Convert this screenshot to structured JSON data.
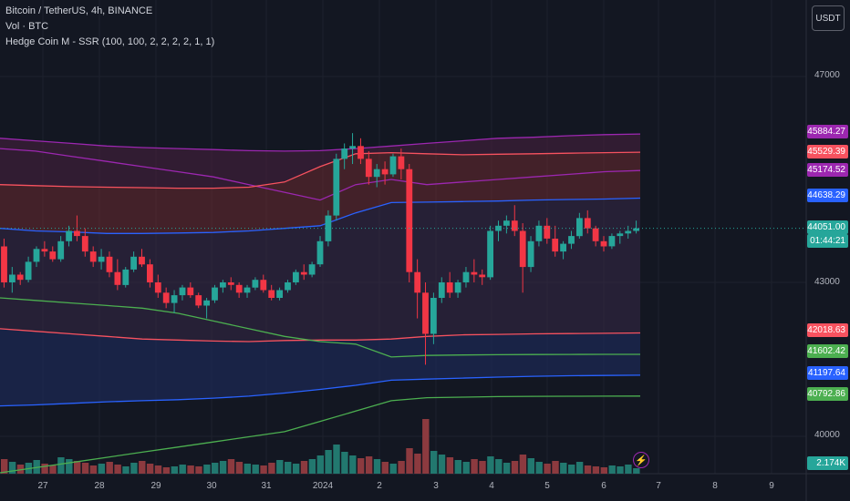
{
  "legend": {
    "main": "Bitcoin / TetherUS, 4h, BINANCE",
    "vol": "Vol · BTC",
    "indicator": "Hedge Coin M - SSR (100, 100, 2, 2, 2, 2, 1, 1)"
  },
  "currency_button": "USDT",
  "colors": {
    "up": "#26a69a",
    "down": "#f23645",
    "purple": "#9c27b0",
    "orange": "#f7525f",
    "blue": "#2962ff",
    "green": "#4caf50",
    "volume_up": "#22786f",
    "volume_down": "#8c3a3f"
  },
  "chart_data": {
    "type": "candlestick",
    "title": "Bitcoin / TetherUS, 4h, BINANCE",
    "x_axis": {
      "labels": [
        "27",
        "28",
        "29",
        "30",
        "31",
        "2024",
        "2",
        "3",
        "4",
        "5",
        "6",
        "7",
        "8",
        "9"
      ]
    },
    "y_axis": {
      "ticks": [
        47000,
        43000,
        40000
      ],
      "range": [
        39500,
        47500
      ]
    },
    "price_tags": [
      {
        "label": "45884.27",
        "color": "#9c27b0"
      },
      {
        "label": "45529.39",
        "color": "#f7525f"
      },
      {
        "label": "45174.52",
        "color": "#9c27b0"
      },
      {
        "label": "44638.29",
        "color": "#2962ff"
      },
      {
        "label": "44051.00",
        "color": "#26a69a"
      },
      {
        "label": "01:44:21",
        "color": "#26a69a"
      },
      {
        "label": "42018.63",
        "color": "#f7525f"
      },
      {
        "label": "41602.42",
        "color": "#4caf50"
      },
      {
        "label": "41197.64",
        "color": "#2962ff"
      },
      {
        "label": "40792.86",
        "color": "#4caf50"
      },
      {
        "label": "2.174K",
        "color": "#26a69a"
      }
    ],
    "candles": [
      [
        43700,
        43850,
        42900,
        43000
      ],
      [
        43000,
        43300,
        42800,
        43150
      ],
      [
        43150,
        43200,
        42950,
        43050
      ],
      [
        43050,
        43500,
        43000,
        43400
      ],
      [
        43400,
        43700,
        43300,
        43650
      ],
      [
        43650,
        43800,
        43500,
        43600
      ],
      [
        43600,
        43700,
        43400,
        43450
      ],
      [
        43450,
        43900,
        43400,
        43800
      ],
      [
        43800,
        44100,
        43700,
        44000
      ],
      [
        44000,
        44300,
        43800,
        43900
      ],
      [
        43900,
        44050,
        43500,
        43600
      ],
      [
        43600,
        43700,
        43300,
        43400
      ],
      [
        43400,
        43650,
        43250,
        43500
      ],
      [
        43500,
        43600,
        43100,
        43200
      ],
      [
        43200,
        43450,
        42850,
        42950
      ],
      [
        42950,
        43300,
        42900,
        43250
      ],
      [
        43250,
        43600,
        43200,
        43500
      ],
      [
        43500,
        43650,
        43300,
        43350
      ],
      [
        43350,
        43450,
        42900,
        43000
      ],
      [
        43000,
        43150,
        42700,
        42800
      ],
      [
        42800,
        42900,
        42500,
        42600
      ],
      [
        42600,
        42850,
        42400,
        42750
      ],
      [
        42750,
        42950,
        42650,
        42900
      ],
      [
        42900,
        43000,
        42700,
        42750
      ],
      [
        42750,
        42800,
        42500,
        42550
      ],
      [
        42550,
        42700,
        42300,
        42650
      ],
      [
        42650,
        42950,
        42600,
        42900
      ],
      [
        42900,
        43050,
        42800,
        43000
      ],
      [
        43000,
        43100,
        42850,
        42950
      ],
      [
        42950,
        43000,
        42700,
        42800
      ],
      [
        42800,
        42950,
        42700,
        42900
      ],
      [
        42900,
        43100,
        42850,
        43050
      ],
      [
        43050,
        43150,
        42800,
        42850
      ],
      [
        42850,
        42950,
        42650,
        42700
      ],
      [
        42700,
        42900,
        42650,
        42850
      ],
      [
        42850,
        43050,
        42800,
        43000
      ],
      [
        43000,
        43250,
        42950,
        43200
      ],
      [
        43200,
        43350,
        43050,
        43150
      ],
      [
        43150,
        43400,
        43100,
        43350
      ],
      [
        43350,
        43900,
        43300,
        43800
      ],
      [
        43800,
        44400,
        43700,
        44300
      ],
      [
        44300,
        45500,
        44200,
        45400
      ],
      [
        45400,
        45700,
        45200,
        45600
      ],
      [
        45600,
        45900,
        45300,
        45650
      ],
      [
        45650,
        45800,
        45300,
        45400
      ],
      [
        45400,
        45550,
        44900,
        45050
      ],
      [
        45050,
        45300,
        44850,
        45200
      ],
      [
        45200,
        45350,
        44900,
        45100
      ],
      [
        45100,
        45500,
        45050,
        45450
      ],
      [
        45450,
        45600,
        45000,
        45200
      ],
      [
        45200,
        45300,
        43000,
        43200
      ],
      [
        43200,
        43450,
        42300,
        42800
      ],
      [
        42800,
        43000,
        41400,
        42000
      ],
      [
        42000,
        42800,
        41800,
        42700
      ],
      [
        42700,
        43100,
        42600,
        43000
      ],
      [
        43000,
        43200,
        42700,
        42800
      ],
      [
        42800,
        43050,
        42700,
        43000
      ],
      [
        43000,
        43300,
        42900,
        43200
      ],
      [
        43200,
        43450,
        43000,
        43150
      ],
      [
        43150,
        43250,
        42950,
        43100
      ],
      [
        43100,
        44100,
        43050,
        44000
      ],
      [
        44000,
        44200,
        43800,
        44100
      ],
      [
        44100,
        44300,
        43950,
        44200
      ],
      [
        44200,
        44500,
        43900,
        44000
      ],
      [
        44000,
        44150,
        42800,
        43300
      ],
      [
        43300,
        43900,
        43200,
        43800
      ],
      [
        43800,
        44200,
        43700,
        44100
      ],
      [
        44100,
        44250,
        43750,
        43850
      ],
      [
        43850,
        44100,
        43500,
        43600
      ],
      [
        43600,
        43800,
        43450,
        43750
      ],
      [
        43750,
        44000,
        43650,
        43900
      ],
      [
        43900,
        44350,
        43850,
        44250
      ],
      [
        44250,
        44400,
        43950,
        44050
      ],
      [
        44050,
        44100,
        43700,
        43800
      ],
      [
        43800,
        43900,
        43600,
        43700
      ],
      [
        43700,
        43950,
        43650,
        43900
      ],
      [
        43900,
        44000,
        43750,
        43950
      ],
      [
        43950,
        44100,
        43850,
        44000
      ],
      [
        44000,
        44200,
        43950,
        44051
      ]
    ],
    "volume": [
      1.6,
      1.3,
      1.0,
      1.2,
      1.5,
      1.1,
      0.9,
      1.8,
      1.6,
      1.4,
      1.2,
      0.9,
      1.1,
      1.3,
      1.0,
      0.8,
      1.2,
      1.4,
      1.1,
      0.9,
      0.7,
      0.8,
      1.0,
      0.9,
      0.8,
      1.0,
      1.2,
      1.4,
      1.6,
      1.3,
      1.1,
      1.0,
      0.9,
      1.2,
      1.5,
      1.3,
      1.1,
      1.4,
      1.6,
      2.0,
      2.6,
      3.2,
      2.4,
      2.0,
      1.7,
      1.9,
      1.6,
      1.3,
      1.1,
      1.4,
      2.8,
      2.2,
      6.0,
      2.5,
      2.1,
      1.8,
      1.5,
      1.3,
      1.6,
      1.4,
      1.9,
      1.6,
      1.2,
      1.4,
      2.1,
      1.7,
      1.3,
      1.1,
      1.4,
      1.2,
      1.0,
      1.3,
      0.9,
      0.8,
      0.7,
      0.9,
      0.8,
      1.0,
      0.6
    ],
    "bands": {
      "outer_upper": [
        45800,
        45750,
        45700,
        45650,
        45620,
        45600,
        45580,
        45560,
        45550,
        45560,
        45600,
        45650,
        45700,
        45750,
        45800,
        45820,
        45850,
        45870,
        45884
      ],
      "mid_upper": [
        44900,
        44880,
        44860,
        44850,
        44840,
        44830,
        44830,
        44850,
        44950,
        45250,
        45500,
        45520,
        45500,
        45480,
        45490,
        45500,
        45510,
        45520,
        45529
      ],
      "inner_upper": [
        45600,
        45550,
        45450,
        45350,
        45250,
        45150,
        45050,
        44900,
        44750,
        44600,
        44900,
        45000,
        44900,
        44950,
        45000,
        45050,
        45100,
        45150,
        45174
      ],
      "basis": [
        44050,
        44000,
        43980,
        43950,
        43950,
        43960,
        43970,
        44000,
        44050,
        44100,
        44350,
        44550,
        44560,
        44570,
        44580,
        44600,
        44610,
        44620,
        44638
      ],
      "mid_lower": [
        42100,
        42050,
        42000,
        41950,
        41900,
        41880,
        41860,
        41850,
        41870,
        41880,
        41880,
        41900,
        41950,
        41980,
        41990,
        42000,
        42005,
        42010,
        42018
      ],
      "outer_lower_green": [
        42700,
        42650,
        42600,
        42550,
        42500,
        42400,
        42250,
        42100,
        41950,
        41850,
        41800,
        41550,
        41580,
        41590,
        41595,
        41598,
        41600,
        41601,
        41602
      ],
      "outer_lower_blue": [
        40600,
        40620,
        40650,
        40680,
        40700,
        40720,
        40750,
        40790,
        40850,
        40920,
        41000,
        41100,
        41120,
        41140,
        41160,
        41175,
        41185,
        41192,
        41197
      ],
      "volume_ma_green": [
        39300,
        39400,
        39500,
        39600,
        39700,
        39800,
        39900,
        40000,
        40100,
        40300,
        40500,
        40700,
        40760,
        40770,
        40780,
        40785,
        40788,
        40790,
        40792
      ]
    }
  }
}
